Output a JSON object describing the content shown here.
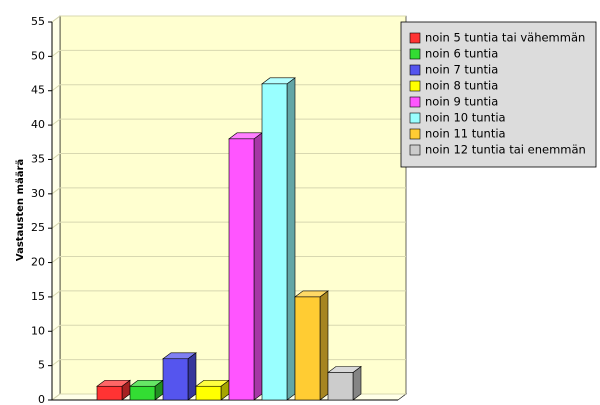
{
  "chart_data": {
    "type": "bar",
    "y_label": "Vastausten määrä",
    "categories": [
      "noin 5 tuntia tai vähemmän",
      "noin 6 tuntia",
      "noin 7 tuntia",
      "noin 8 tuntia",
      "noin 9 tuntia",
      "noin 10 tuntia",
      "noin 11 tuntia",
      "noin 12 tuntia tai enemmän"
    ],
    "values": [
      2,
      2,
      6,
      2,
      38,
      46,
      15,
      4
    ],
    "colors": [
      "#ff3333",
      "#33dd33",
      "#5555ee",
      "#ffff00",
      "#ff55ff",
      "#99ffff",
      "#ffcc33",
      "#cccccc"
    ],
    "ylim": [
      0,
      55
    ],
    "yticks": [
      0,
      5,
      10,
      15,
      20,
      25,
      30,
      35,
      40,
      45,
      50,
      55
    ],
    "grid": true,
    "legend": "right"
  }
}
